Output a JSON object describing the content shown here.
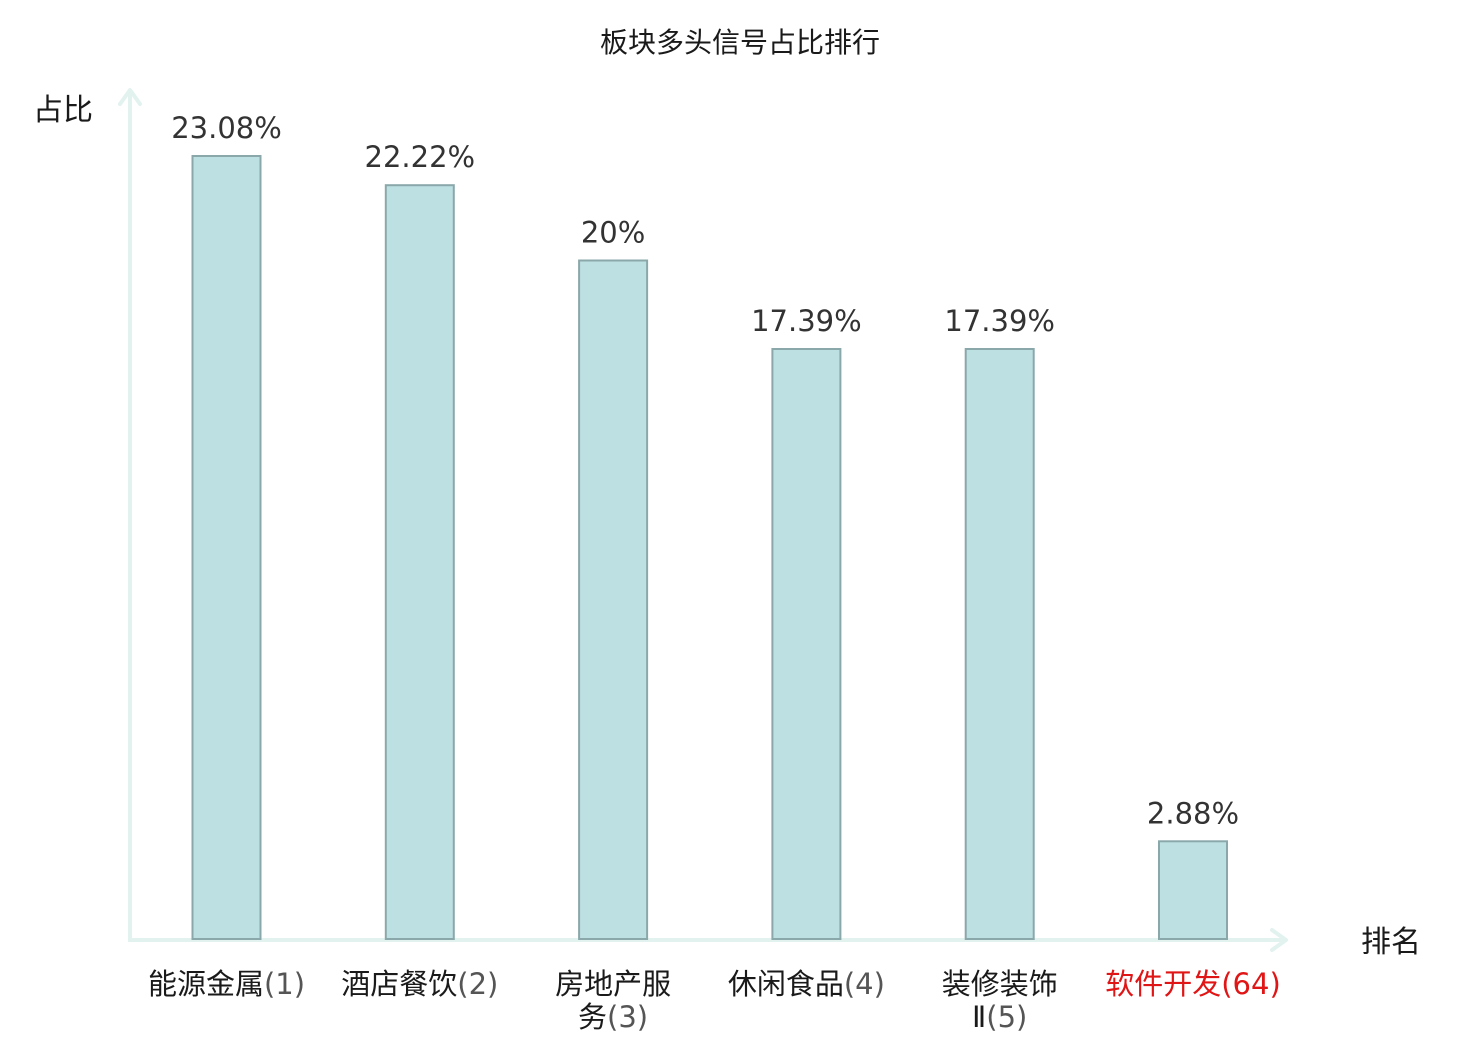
{
  "chart_data": {
    "type": "bar",
    "title": "板块多头信号占比排行",
    "ylabel": "占比",
    "xlabel": "排名",
    "categories": [
      {
        "name_lines": [
          "能源金属"
        ],
        "rank": "(1)",
        "rank_inline": true,
        "highlight": false
      },
      {
        "name_lines": [
          "酒店餐饮"
        ],
        "rank": "(2)",
        "rank_inline": true,
        "highlight": false
      },
      {
        "name_lines": [
          "房地产服",
          "务"
        ],
        "rank": "(3)",
        "rank_inline": true,
        "highlight": false
      },
      {
        "name_lines": [
          "休闲食品"
        ],
        "rank": "(4)",
        "rank_inline": true,
        "highlight": false
      },
      {
        "name_lines": [
          "装修装饰",
          "Ⅱ"
        ],
        "rank": "(5)",
        "rank_inline": true,
        "highlight": false
      },
      {
        "name_lines": [
          "软件开发"
        ],
        "rank": "(64)",
        "rank_inline": true,
        "highlight": true
      }
    ],
    "values": [
      23.08,
      22.22,
      20,
      17.39,
      17.39,
      2.88
    ],
    "value_labels": [
      "23.08%",
      "22.22%",
      "20%",
      "17.39%",
      "17.39%",
      "2.88%"
    ],
    "ylim": [
      0,
      23.08
    ],
    "grid": false,
    "legend": "none",
    "colors": {
      "bar_fill": "#bde0e3",
      "bar_stroke": "#8aa8aa",
      "axis": "#e2f2ef",
      "highlight_text": "#e01515"
    }
  }
}
